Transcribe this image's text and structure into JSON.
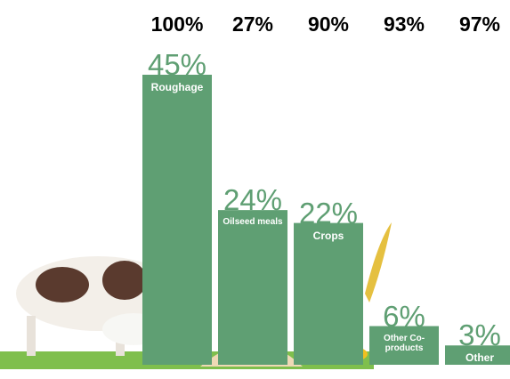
{
  "chart_data": {
    "type": "bar",
    "categories": [
      "Roughage",
      "Oilseed meals",
      "Crops",
      "Other Co-products",
      "Other"
    ],
    "values": [
      45,
      24,
      22,
      6,
      3
    ],
    "value_labels": [
      "45%",
      "24%",
      "22%",
      "6%",
      "3%"
    ],
    "color": "#5f9f73",
    "top_values": [
      100,
      27,
      90,
      93,
      97
    ],
    "top_value_labels": [
      "100%",
      "27%",
      "90%",
      "93%",
      "97%"
    ]
  }
}
